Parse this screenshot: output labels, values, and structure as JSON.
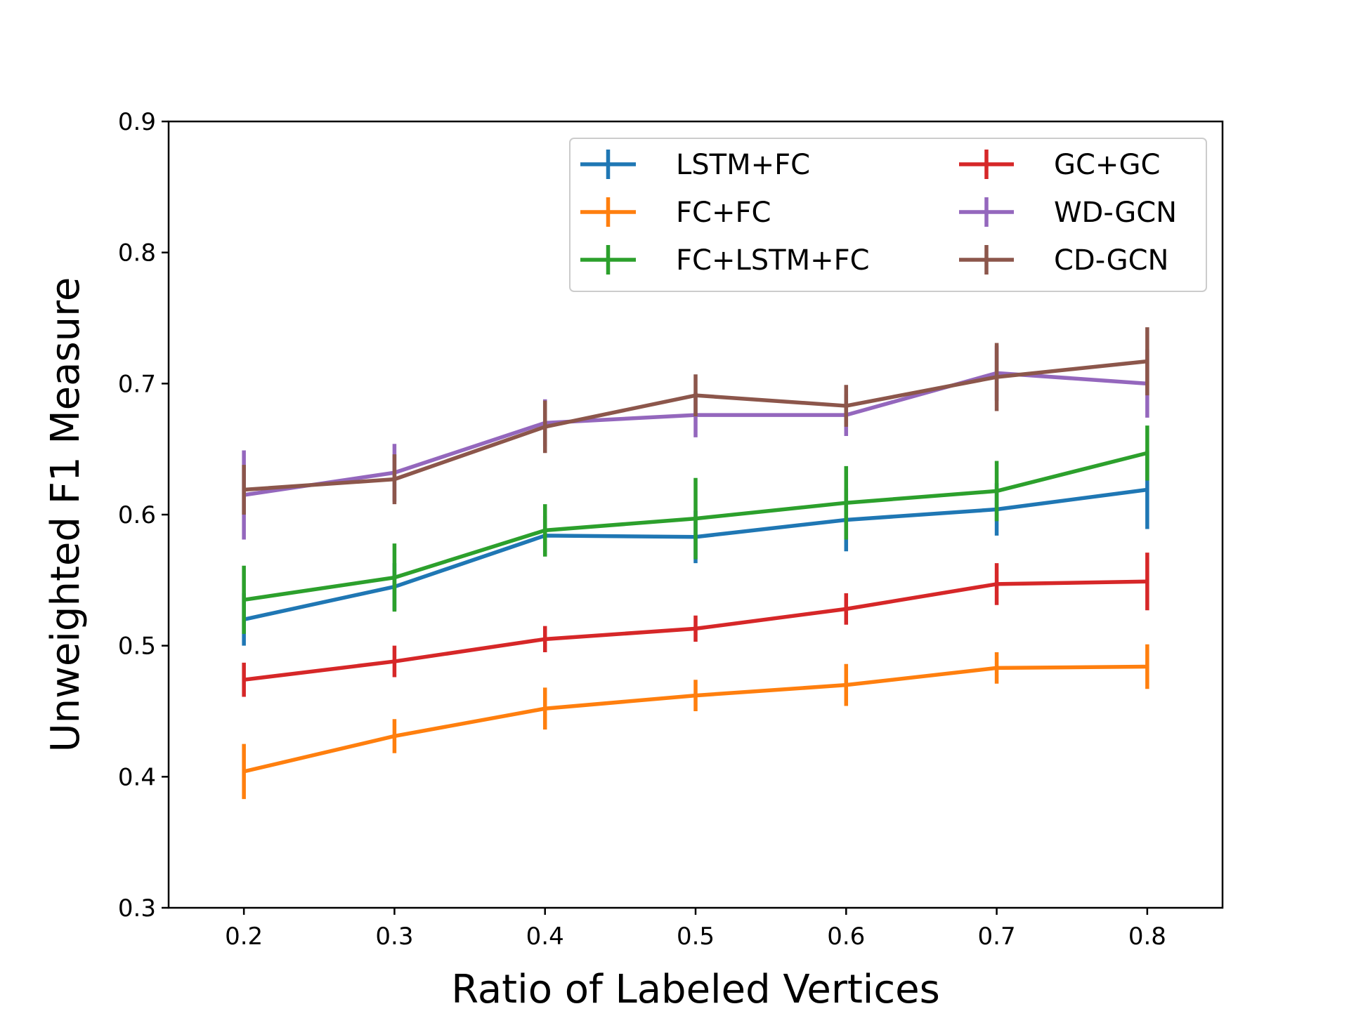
{
  "chart_data": {
    "type": "line",
    "title": "",
    "xlabel": "Ratio of Labeled Vertices",
    "ylabel": "Unweighted F1 Measure",
    "xlim": [
      0.15,
      0.85
    ],
    "ylim": [
      0.3,
      0.9
    ],
    "x": [
      0.2,
      0.3,
      0.4,
      0.5,
      0.6,
      0.7,
      0.8
    ],
    "xticks": [
      "0.2",
      "0.3",
      "0.4",
      "0.5",
      "0.6",
      "0.7",
      "0.8"
    ],
    "yticks": [
      "0.3",
      "0.4",
      "0.5",
      "0.6",
      "0.7",
      "0.8",
      "0.9"
    ],
    "legend_position": "top-right",
    "grid": false,
    "series": [
      {
        "name": "LSTM+FC",
        "color": "#1f77b4",
        "values": [
          0.52,
          0.545,
          0.584,
          0.583,
          0.596,
          0.604,
          0.619
        ],
        "errors": [
          0.02,
          0.018,
          0.015,
          0.02,
          0.024,
          0.02,
          0.03
        ]
      },
      {
        "name": "FC+FC",
        "color": "#ff7f0e",
        "values": [
          0.404,
          0.431,
          0.452,
          0.462,
          0.47,
          0.483,
          0.484
        ],
        "errors": [
          0.021,
          0.013,
          0.016,
          0.012,
          0.016,
          0.012,
          0.017
        ]
      },
      {
        "name": "FC+LSTM+FC",
        "color": "#2ca02c",
        "values": [
          0.535,
          0.552,
          0.588,
          0.597,
          0.609,
          0.618,
          0.647
        ],
        "errors": [
          0.026,
          0.026,
          0.02,
          0.031,
          0.028,
          0.023,
          0.021
        ]
      },
      {
        "name": "GC+GC",
        "color": "#d62728",
        "values": [
          0.474,
          0.488,
          0.505,
          0.513,
          0.528,
          0.547,
          0.549
        ],
        "errors": [
          0.013,
          0.012,
          0.01,
          0.01,
          0.012,
          0.016,
          0.022
        ]
      },
      {
        "name": "WD-GCN",
        "color": "#9467bd",
        "values": [
          0.615,
          0.632,
          0.67,
          0.676,
          0.676,
          0.708,
          0.7
        ],
        "errors": [
          0.034,
          0.022,
          0.018,
          0.017,
          0.016,
          0.021,
          0.026
        ]
      },
      {
        "name": "CD-GCN",
        "color": "#8c564b",
        "values": [
          0.619,
          0.627,
          0.667,
          0.691,
          0.683,
          0.705,
          0.717
        ],
        "errors": [
          0.019,
          0.019,
          0.02,
          0.016,
          0.016,
          0.026,
          0.026
        ]
      }
    ]
  }
}
